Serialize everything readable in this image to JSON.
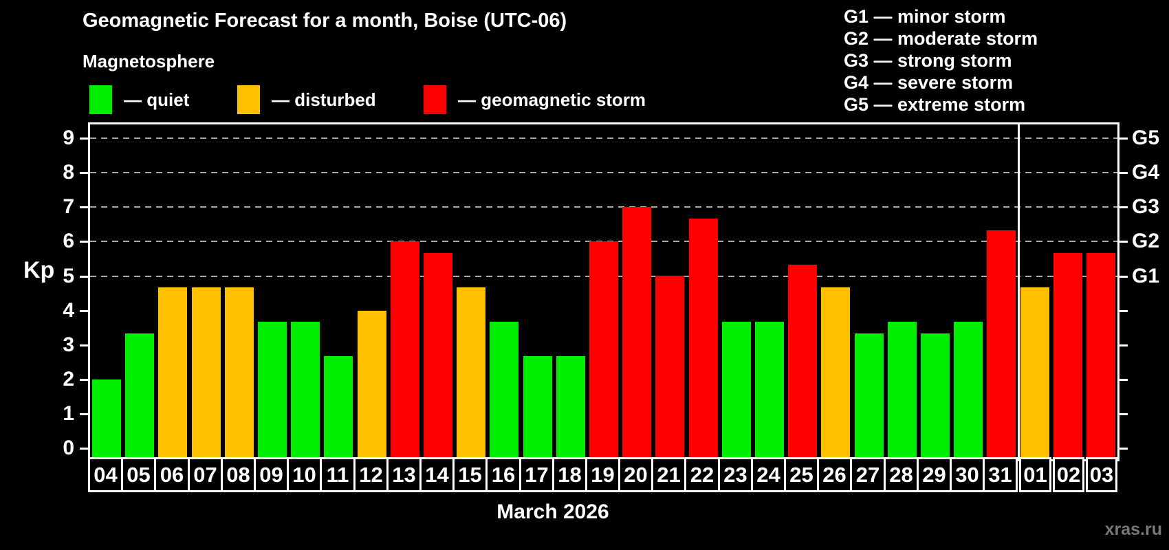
{
  "header": {
    "title": "Geomagnetic Forecast for a month, Boise (UTC-06)",
    "subtitle": "Magnetosphere"
  },
  "legend": {
    "items": [
      {
        "label": "— quiet",
        "state": "quiet",
        "color": "#00ef00",
        "x": 130
      },
      {
        "label": "— disturbed",
        "state": "disturbed",
        "color": "#ffc000",
        "x": 345
      },
      {
        "label": "— geomagnetic storm",
        "state": "storm",
        "color": "#ff0000",
        "x": 616
      }
    ]
  },
  "g_legend": {
    "items": [
      "G1 — minor storm",
      "G2 — moderate storm",
      "G3 — strong storm",
      "G4 — severe storm",
      "G5 — extreme storm"
    ]
  },
  "axes": {
    "y_left_label": "Kp",
    "y_ticks": [
      0,
      1,
      2,
      3,
      4,
      5,
      6,
      7,
      8,
      9
    ],
    "y_right_labels": [
      {
        "value": 5,
        "label": "G1"
      },
      {
        "value": 6,
        "label": "G2"
      },
      {
        "value": 7,
        "label": "G3"
      },
      {
        "value": 8,
        "label": "G4"
      },
      {
        "value": 9,
        "label": "G5"
      }
    ],
    "month_label": "March 2026"
  },
  "watermark": "xras.ru",
  "colors": {
    "background": "#000000",
    "frame": "#ffffff",
    "grid": "#aaaaaa",
    "quiet": "#00ef00",
    "disturbed": "#ffc000",
    "storm": "#ff0000"
  },
  "chart_data": {
    "type": "bar",
    "title": "Geomagnetic Forecast for a month, Boise (UTC-06)",
    "xlabel": "March 2026",
    "ylabel": "Kp",
    "ylim": [
      0,
      9
    ],
    "grid_values": [
      5,
      6,
      7,
      8,
      9
    ],
    "legend_position": "top",
    "month_boundary_after_index": 27,
    "categories": [
      "04",
      "05",
      "06",
      "07",
      "08",
      "09",
      "10",
      "11",
      "12",
      "13",
      "14",
      "15",
      "16",
      "17",
      "18",
      "19",
      "20",
      "21",
      "22",
      "23",
      "24",
      "25",
      "26",
      "27",
      "28",
      "29",
      "30",
      "31",
      "01",
      "02",
      "03"
    ],
    "values": [
      2.0,
      3.33,
      4.67,
      4.67,
      4.67,
      3.67,
      3.67,
      2.67,
      4.0,
      6.0,
      5.67,
      4.67,
      3.67,
      2.67,
      2.67,
      6.0,
      7.0,
      5.0,
      6.67,
      3.67,
      3.67,
      5.33,
      4.67,
      3.33,
      3.67,
      3.33,
      3.67,
      6.33,
      4.67,
      5.67,
      5.67
    ],
    "states": [
      "quiet",
      "quiet",
      "disturbed",
      "disturbed",
      "disturbed",
      "quiet",
      "quiet",
      "quiet",
      "disturbed",
      "storm",
      "storm",
      "disturbed",
      "quiet",
      "quiet",
      "quiet",
      "storm",
      "storm",
      "storm",
      "storm",
      "quiet",
      "quiet",
      "storm",
      "disturbed",
      "quiet",
      "quiet",
      "quiet",
      "quiet",
      "storm",
      "disturbed",
      "storm",
      "storm"
    ]
  }
}
